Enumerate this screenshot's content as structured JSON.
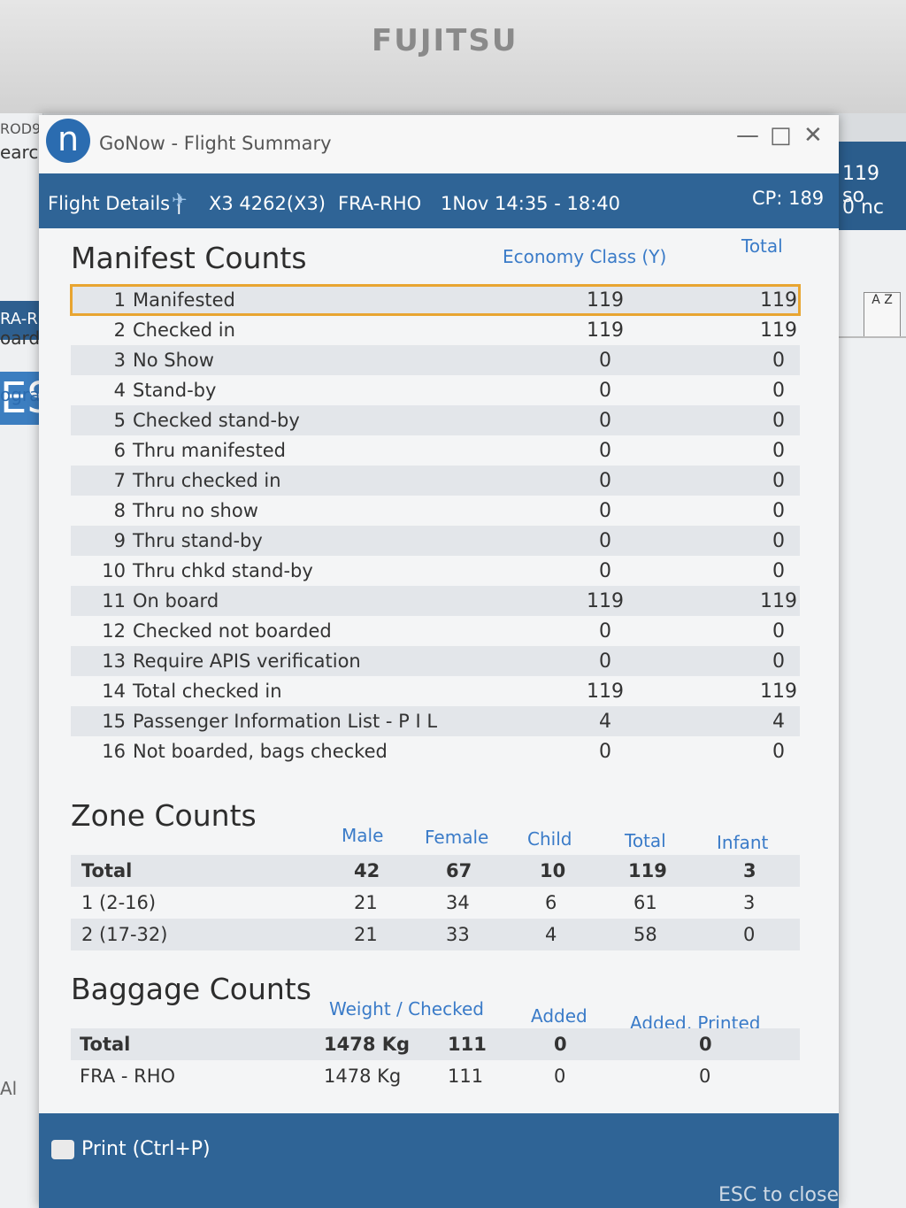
{
  "bezel": {
    "brand": "FUJITSU"
  },
  "background_left": {
    "frag1": "ROD9",
    "frag2": "earch",
    "frag3": "RA-R",
    "frag4": "ES",
    "frag5": "oard",
    "frag6": "ogra",
    "frag7": "Al"
  },
  "background_right": {
    "frag1": "119 so",
    "frag2": "0 nc",
    "az": "A Z"
  },
  "window": {
    "app_title": "GoNow - Flight Summary",
    "logo_letter": "n",
    "controls": {
      "minimize": "—",
      "maximize": "□",
      "close": "✕"
    }
  },
  "flight": {
    "section": "Flight Details |",
    "flight_no": "X3 4262(X3)",
    "route": "FRA-RHO",
    "date_time": "1Nov 14:35 - 18:40",
    "capacity": "CP: 189"
  },
  "manifest": {
    "title": "Manifest Counts",
    "col_economy": "Economy Class (Y)",
    "col_total": "Total",
    "rows": [
      {
        "num": "1",
        "label": "Manifested",
        "economy": "119",
        "total": "119"
      },
      {
        "num": "2",
        "label": "Checked in",
        "economy": "119",
        "total": "119"
      },
      {
        "num": "3",
        "label": "No Show",
        "economy": "0",
        "total": "0"
      },
      {
        "num": "4",
        "label": "Stand-by",
        "economy": "0",
        "total": "0"
      },
      {
        "num": "5",
        "label": "Checked stand-by",
        "economy": "0",
        "total": "0"
      },
      {
        "num": "6",
        "label": "Thru manifested",
        "economy": "0",
        "total": "0"
      },
      {
        "num": "7",
        "label": "Thru checked in",
        "economy": "0",
        "total": "0"
      },
      {
        "num": "8",
        "label": "Thru no show",
        "economy": "0",
        "total": "0"
      },
      {
        "num": "9",
        "label": "Thru stand-by",
        "economy": "0",
        "total": "0"
      },
      {
        "num": "10",
        "label": "Thru chkd stand-by",
        "economy": "0",
        "total": "0"
      },
      {
        "num": "11",
        "label": "On board",
        "economy": "119",
        "total": "119"
      },
      {
        "num": "12",
        "label": "Checked not boarded",
        "economy": "0",
        "total": "0"
      },
      {
        "num": "13",
        "label": "Require APIS verification",
        "economy": "0",
        "total": "0"
      },
      {
        "num": "14",
        "label": "Total checked in",
        "economy": "119",
        "total": "119"
      },
      {
        "num": "15",
        "label": "Passenger Information List - P I L",
        "economy": "4",
        "total": "4"
      },
      {
        "num": "16",
        "label": "Not boarded, bags checked",
        "economy": "0",
        "total": "0"
      }
    ]
  },
  "zone": {
    "title": "Zone Counts",
    "headers": [
      "Male",
      "Female",
      "Child",
      "Total",
      "Infant"
    ],
    "rows": [
      {
        "label": "Total",
        "male": "42",
        "female": "67",
        "child": "10",
        "total": "119",
        "infant": "3"
      },
      {
        "label": "1 (2-16)",
        "male": "21",
        "female": "34",
        "child": "6",
        "total": "61",
        "infant": "3"
      },
      {
        "label": "2 (17-32)",
        "male": "21",
        "female": "33",
        "child": "4",
        "total": "58",
        "infant": "0"
      }
    ]
  },
  "baggage": {
    "title": "Baggage Counts",
    "headers": {
      "weight_checked": "Weight  /  Checked",
      "added": "Added",
      "added_printed": "Added, Printed"
    },
    "rows": [
      {
        "label": "Total",
        "weight": "1478 Kg",
        "checked": "111",
        "added": "0",
        "added_printed": "0"
      },
      {
        "label": "FRA - RHO",
        "weight": "1478 Kg",
        "checked": "111",
        "added": "0",
        "added_printed": "0"
      }
    ]
  },
  "footer": {
    "print_label": "Print (Ctrl+P)",
    "esc_label": "ESC to close"
  }
}
